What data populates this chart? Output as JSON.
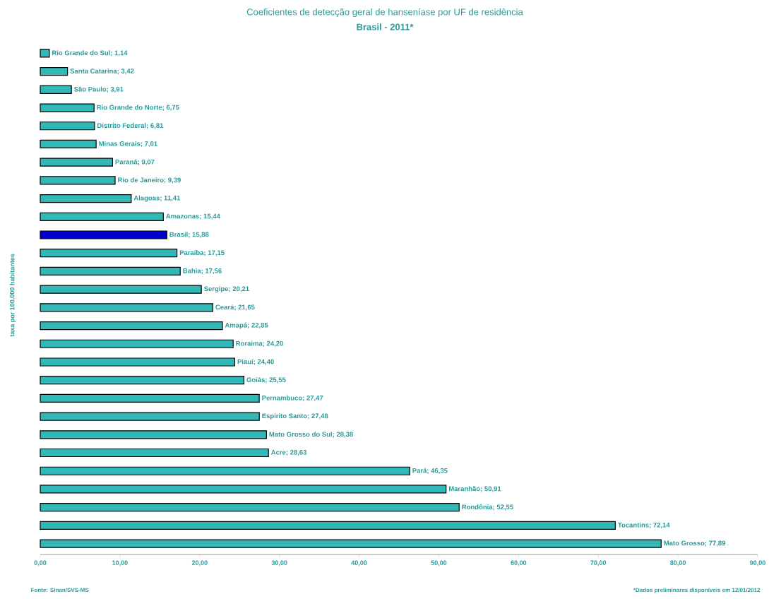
{
  "chart_data": {
    "type": "bar",
    "orientation": "horizontal",
    "title": "Coeficientes de detecção geral de hanseníase por UF de residência",
    "subtitle": "Brasil - 2011*",
    "ylabel": "taxa por 100.000 habitantes",
    "annotations": [
      "Fonte: Sinan/SVS-MS",
      "*Dados preliminares disponíveis em 12/01/2012"
    ],
    "categories": [
      null,
      null,
      null,
      null,
      null,
      null,
      null,
      null,
      null,
      null,
      null,
      null,
      null,
      null,
      null,
      null,
      null,
      null,
      null,
      null,
      null,
      null,
      null,
      null,
      null,
      null,
      null,
      null
    ],
    "values": [
      1.14,
      3.42,
      3.91,
      6.75,
      6.81,
      7.01,
      9.07,
      9.39,
      11.41,
      15.44,
      15.88,
      17.15,
      17.56,
      20.21,
      21.65,
      22.85,
      24.2,
      24.4,
      25.55,
      27.47,
      27.48,
      28.38,
      28.63,
      46.35,
      50.91,
      52.55,
      72.14,
      77.89
    ],
    "value_labels": [
      "Rio Grande do Sul; 1,14",
      "Santa Catarina; 3,42",
      "São Paulo; 3,91",
      "Rio Grande do Norte; 6,75",
      "Distrito Federal; 6,81",
      "Minas Gerais; 7,01",
      "Paraná; 9,07",
      "Rio de Janeiro; 9,39",
      "Alagoas; 11,41",
      "Amazonas; 15,44",
      "Brasil; 15,88",
      "Paraíba; 17,15",
      "Bahia; 17,56",
      "Sergipe; 20,21",
      "Ceará; 21,65",
      "Amapá; 22,85",
      "Roraima; 24,20",
      "Piauí; 24,40",
      "Goiás; 25,55",
      "Pernambuco; 27,47",
      "Espírito Santo; 27,48",
      "Mato Grosso do Sul; 28,38",
      "Acre; 28,63",
      "Pará; 46,35",
      "Maranhão; 50,91",
      "Rondônia; 52,55",
      "Tocantins; 72,14",
      "Mato Grosso; 77,89"
    ],
    "colors": [
      "#33b8b8",
      "#33b8b8",
      "#33b8b8",
      "#33b8b8",
      "#33b8b8",
      "#33b8b8",
      "#33b8b8",
      "#33b8b8",
      "#33b8b8",
      "#33b8b8",
      "#0000cc",
      "#33b8b8",
      "#33b8b8",
      "#33b8b8",
      "#33b8b8",
      "#33b8b8",
      "#33b8b8",
      "#33b8b8",
      "#33b8b8",
      "#33b8b8",
      "#33b8b8",
      "#33b8b8",
      "#33b8b8",
      "#33b8b8",
      "#33b8b8",
      "#33b8b8",
      "#33b8b8",
      "#33b8b8"
    ],
    "xlim": [
      0,
      90
    ],
    "xticks": [
      {
        "value": 0,
        "label": "0,00"
      },
      {
        "value": 10,
        "label": "10,00"
      },
      {
        "value": 20,
        "label": "20,00"
      },
      {
        "value": 30,
        "label": "30,00"
      },
      {
        "value": 40,
        "label": "40,00"
      },
      {
        "value": 50,
        "label": "50,00"
      },
      {
        "value": 60,
        "label": "60,00"
      },
      {
        "value": 70,
        "label": "70,00"
      },
      {
        "value": 80,
        "label": "80,00"
      },
      {
        "value": 90,
        "label": "90,00"
      }
    ]
  }
}
